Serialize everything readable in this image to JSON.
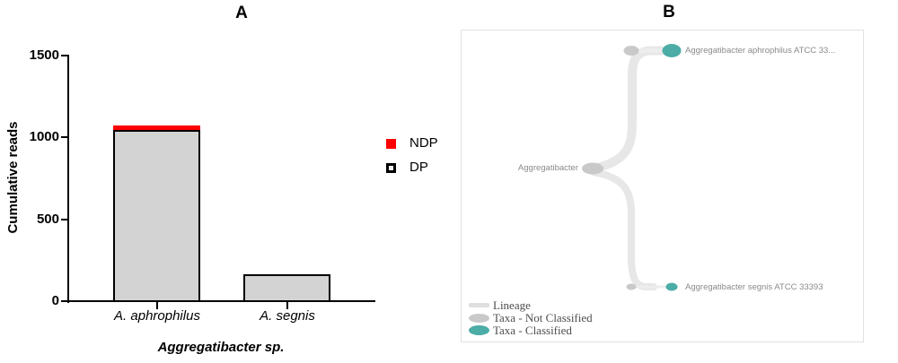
{
  "page": {
    "background": "#ffffff"
  },
  "panel_a": {
    "title": "A",
    "ylabel": "Cumulative reads",
    "xlabel": "Aggregatibacter sp.",
    "yticks": [
      "1500",
      "1000",
      "500",
      "0"
    ],
    "categories": [
      "A. aphrophilus",
      "A. segnis"
    ],
    "legend": [
      {
        "label": "NDP",
        "swatch": "red-filled-square",
        "color": "#fe0000"
      },
      {
        "label": "DP",
        "swatch": "white-square-black-border",
        "color": "#f2f2f2"
      }
    ]
  },
  "panel_b": {
    "title": "B",
    "root_label": "Aggregatibacter",
    "leaves": [
      "Aggregatibacter aphrophilus ATCC 33...",
      "Aggregatibacter segnis ATCC 33393"
    ],
    "legend": [
      {
        "label": "Lineage",
        "swatch": "line",
        "color": "#dedede"
      },
      {
        "label": "Taxa - Not Classified",
        "swatch": "ellipse",
        "color": "#c9c9c9"
      },
      {
        "label": "Taxa - Classified",
        "swatch": "ellipse",
        "color": "#4bada6"
      }
    ]
  },
  "chart_data": [
    {
      "type": "bar",
      "panel": "A",
      "title": "A",
      "stacked": true,
      "categories": [
        "A. aphrophilus",
        "A. segnis"
      ],
      "series": [
        {
          "name": "DP",
          "values": [
            1050,
            170
          ],
          "color": "#d3d3d3",
          "border_color": "#000000"
        },
        {
          "name": "NDP",
          "values": [
            25,
            0
          ],
          "color": "#fe0000"
        }
      ],
      "xlabel": "Aggregatibacter sp.",
      "ylabel": "Cumulative reads",
      "ylim": [
        0,
        1500
      ],
      "yticks": [
        0,
        500,
        1000,
        1500
      ],
      "grid": false,
      "legend_position": "right-of-plot"
    },
    {
      "type": "tree",
      "panel": "B",
      "root": "Aggregatibacter",
      "edges": [
        [
          "Aggregatibacter",
          "Aggregatibacter aphrophilus ATCC 33..."
        ],
        [
          "Aggregatibacter",
          "Aggregatibacter segnis ATCC 33393"
        ]
      ],
      "node_status": {
        "Aggregatibacter": "not-classified",
        "Aggregatibacter aphrophilus ATCC 33...": "classified",
        "Aggregatibacter segnis ATCC 33393": "classified"
      },
      "legend": [
        "Lineage",
        "Taxa - Not Classified",
        "Taxa - Classified"
      ],
      "colors": {
        "classified": "#4bada6",
        "not_classified": "#c9c9c9",
        "lineage": "#e7e7e7"
      }
    }
  ]
}
